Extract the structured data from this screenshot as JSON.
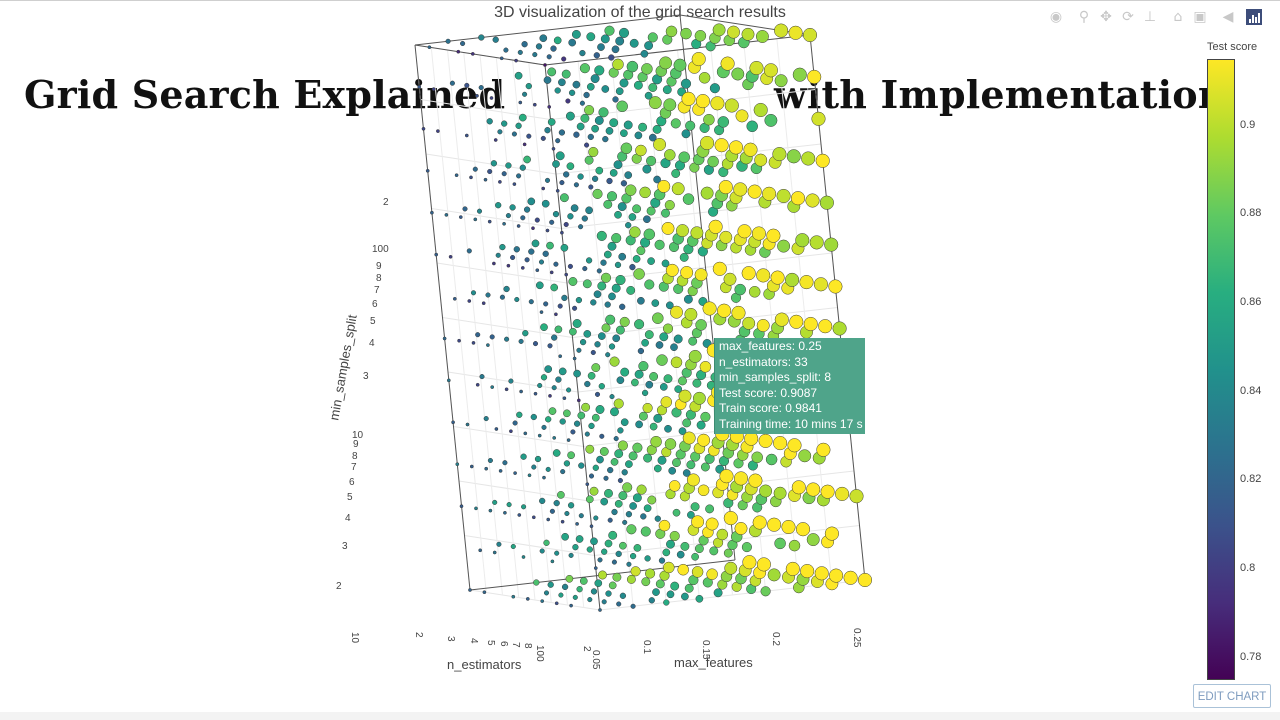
{
  "chart_title": "3D visualization of the grid search results",
  "overlay": {
    "left_text": "Grid Search Explained",
    "right_text": "with Implementation"
  },
  "modebar": {
    "icons": [
      "camera-icon",
      "zoom-icon",
      "pan-icon",
      "orbit-icon",
      "turntable-icon",
      "home-icon",
      "camera-view-icon",
      "hover-icon",
      "plotly-logo-icon"
    ]
  },
  "axes": {
    "y_title": "min_samples_split",
    "x_title": "n_estimators",
    "z_title": "max_features"
  },
  "tooltip": {
    "line1": "max_features: 0.25",
    "line2": "n_estimators: 33",
    "line3": "min_samples_split: 8",
    "line4": "Test score: 0.9087",
    "line5": "Train score: 0.9841",
    "line6": "Training time: 10 mins 17 s"
  },
  "colorbar": {
    "title": "Test score",
    "ticks": [
      "0.9",
      "0.88",
      "0.86",
      "0.84",
      "0.82",
      "0.8",
      "0.78"
    ],
    "tick_values": [
      0.9,
      0.88,
      0.86,
      0.84,
      0.82,
      0.8,
      0.78
    ],
    "range": [
      0.775,
      0.915
    ],
    "colorscale": "viridis"
  },
  "edit_chart_label": "EDIT CHART",
  "chart_data": {
    "type": "scatter",
    "title": "3D visualization of the grid search results",
    "projection": "3d",
    "x_axis": {
      "title": "n_estimators",
      "scale": "log",
      "tick_labels": [
        "10",
        "2",
        "3",
        "4",
        "5",
        "6",
        "7",
        "8",
        "100",
        "2"
      ]
    },
    "y_axis": {
      "title": "min_samples_split",
      "scale": "log",
      "tick_labels_upper": [
        "2",
        "100",
        "9",
        "8",
        "7",
        "6",
        "5",
        "4",
        "3",
        "2"
      ],
      "tick_labels_lower": [
        "10",
        "9",
        "8",
        "7",
        "6",
        "5",
        "4",
        "3",
        "2"
      ]
    },
    "z_axis": {
      "title": "max_features",
      "tick_labels": [
        "0.05",
        "0.1",
        "0.15",
        "0.2",
        "0.25"
      ],
      "range": [
        0.05,
        0.25
      ]
    },
    "color_by": "Test score",
    "size_by": "max_features",
    "colorscale": "viridis",
    "color_range": [
      0.775,
      0.915
    ],
    "grid": true,
    "highlighted_point": {
      "max_features": 0.25,
      "n_estimators": 33,
      "min_samples_split": 8,
      "test_score": 0.9087,
      "train_score": 0.9841,
      "training_time": "10 mins 17 s"
    }
  }
}
